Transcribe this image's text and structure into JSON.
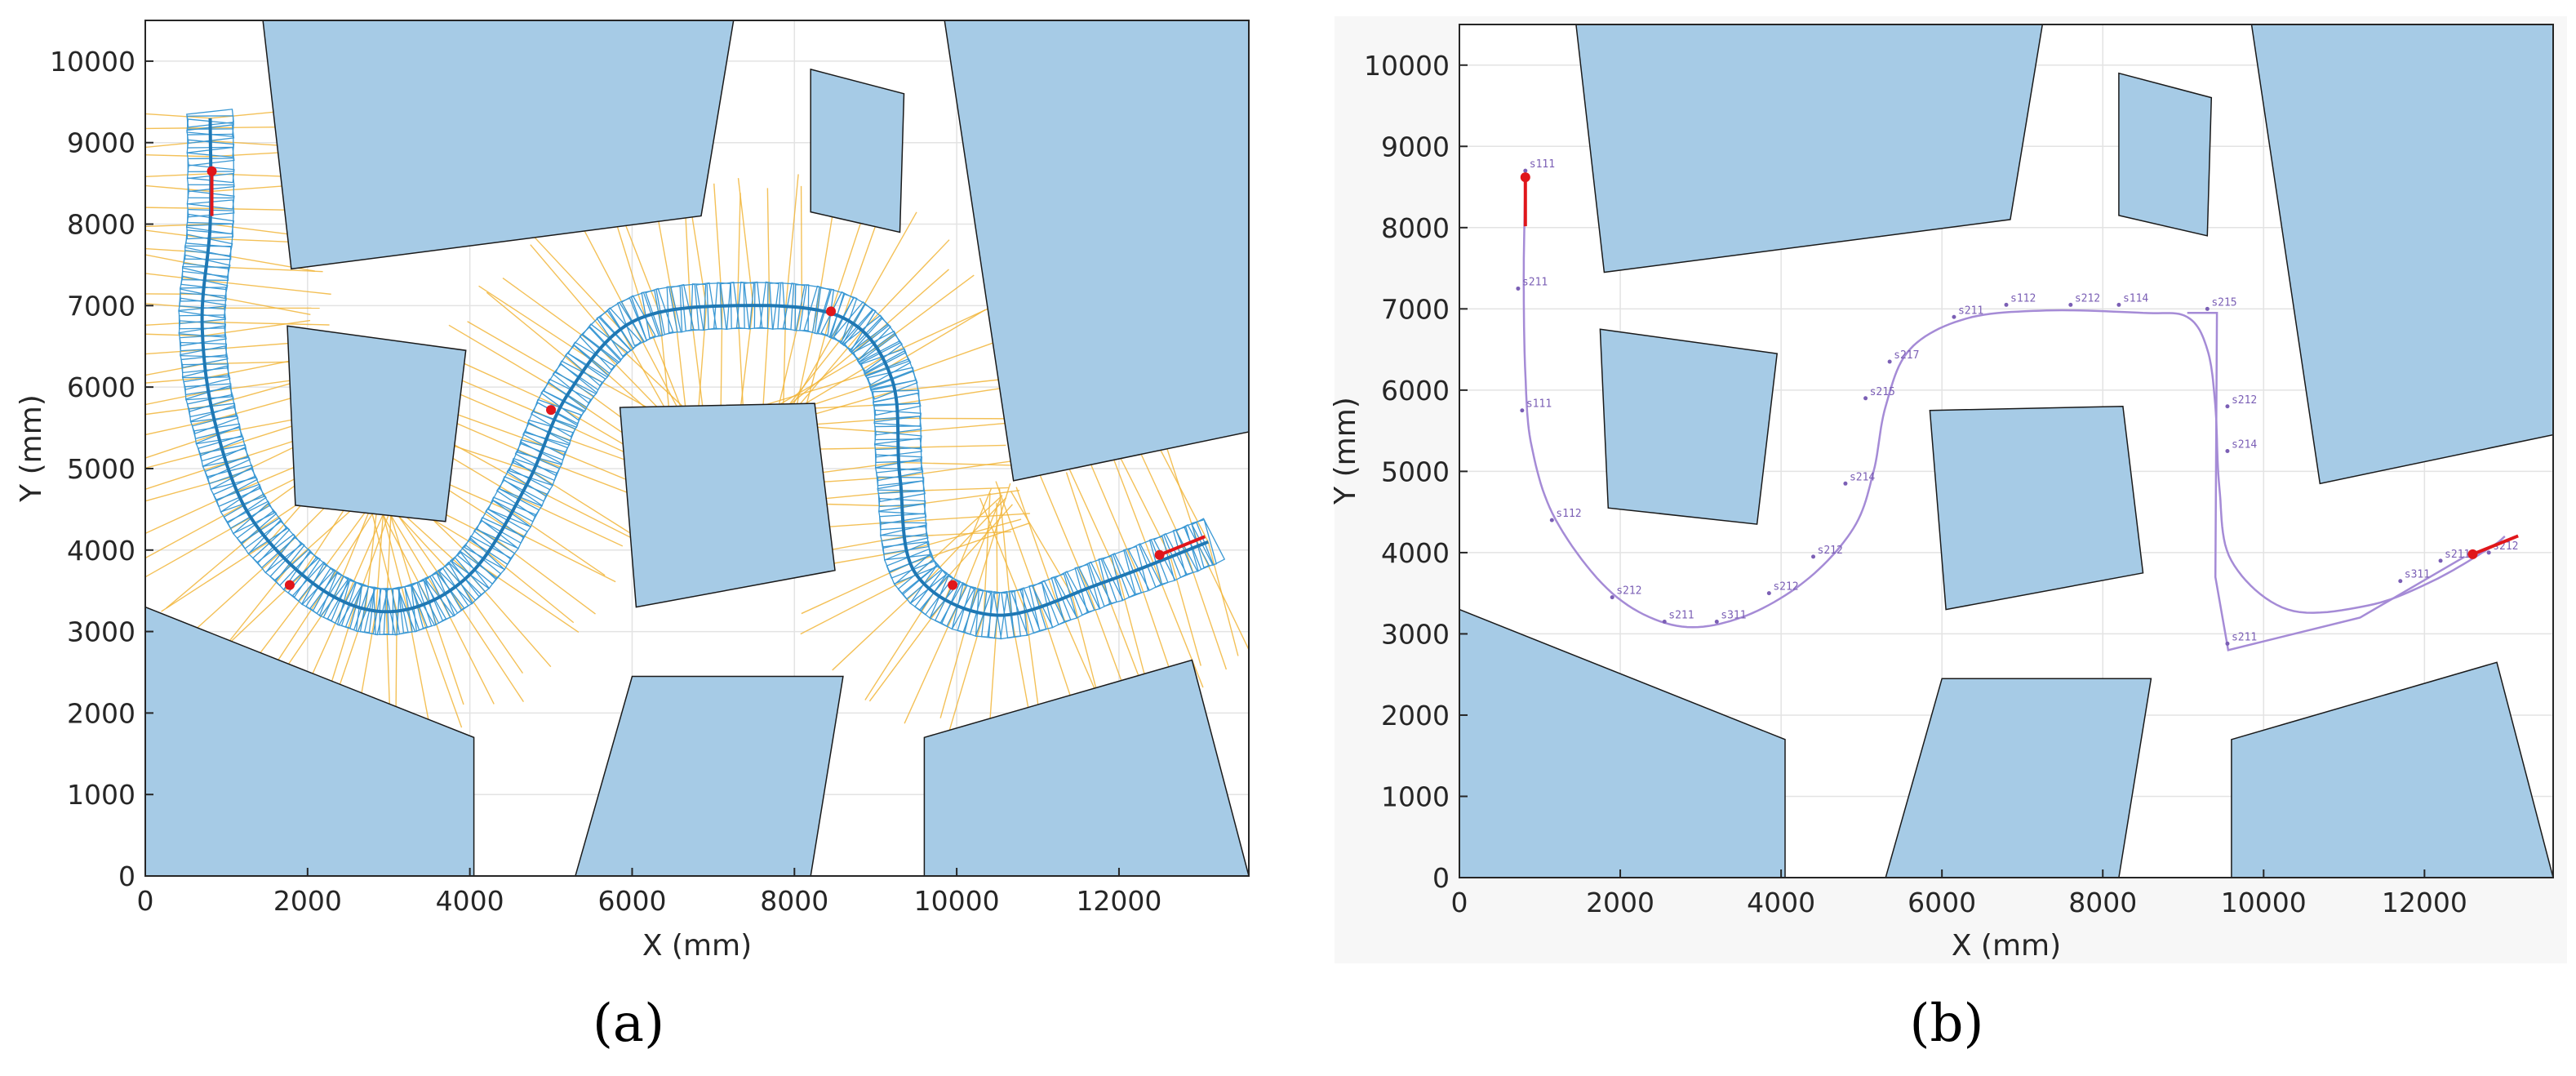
{
  "figure": {
    "panel_labels": [
      "(a)",
      "(b)"
    ]
  },
  "colors": {
    "obstacle_fill": "#a6cbe6",
    "obstacle_edge": "#1a1a1a",
    "grid": "#e3e3e3",
    "path_blue": "#1f78b4",
    "footprint_blue": "#3a98d4",
    "ray_orange": "#f2b63a",
    "marker_red": "#e0161b",
    "path_purple": "#a58bd6",
    "waypoint_text": "#7b5fb5"
  },
  "chart_data": [
    {
      "type": "scatter",
      "panel": "(a)",
      "xlabel": "X (mm)",
      "ylabel": "Y (mm)",
      "xlim": [
        0,
        13600
      ],
      "ylim": [
        0,
        10500
      ],
      "xticks": [
        0,
        2000,
        4000,
        6000,
        8000,
        10000,
        12000
      ],
      "yticks": [
        0,
        1000,
        2000,
        3000,
        4000,
        5000,
        6000,
        7000,
        8000,
        9000,
        10000
      ],
      "grid": true,
      "obstacles": [
        [
          [
            1450,
            10500
          ],
          [
            7250,
            10500
          ],
          [
            6850,
            8100
          ],
          [
            1800,
            7450
          ]
        ],
        [
          [
            8200,
            9900
          ],
          [
            9350,
            9600
          ],
          [
            9300,
            7900
          ],
          [
            8200,
            8150
          ]
        ],
        [
          [
            9850,
            10500
          ],
          [
            13600,
            10500
          ],
          [
            13600,
            5450
          ],
          [
            10700,
            4850
          ]
        ],
        [
          [
            1750,
            6750
          ],
          [
            3950,
            6450
          ],
          [
            3700,
            4350
          ],
          [
            1850,
            4550
          ]
        ],
        [
          [
            5850,
            5750
          ],
          [
            8250,
            5800
          ],
          [
            8500,
            3750
          ],
          [
            6050,
            3300
          ]
        ],
        [
          [
            0,
            3300
          ],
          [
            4050,
            1700
          ],
          [
            4050,
            0
          ],
          [
            0,
            0
          ]
        ],
        [
          [
            5300,
            0
          ],
          [
            8200,
            0
          ],
          [
            8600,
            2450
          ],
          [
            6000,
            2450
          ]
        ],
        [
          [
            9600,
            1700
          ],
          [
            12900,
            2650
          ],
          [
            13600,
            0
          ],
          [
            9600,
            0
          ]
        ]
      ],
      "path": [
        [
          800,
          9300
        ],
        [
          800,
          8000
        ],
        [
          700,
          6800
        ],
        [
          850,
          5600
        ],
        [
          1300,
          4400
        ],
        [
          2200,
          3500
        ],
        [
          3100,
          3250
        ],
        [
          4000,
          3700
        ],
        [
          4700,
          4800
        ],
        [
          5200,
          5900
        ],
        [
          6000,
          6800
        ],
        [
          7300,
          7000
        ],
        [
          8600,
          6850
        ],
        [
          9200,
          6100
        ],
        [
          9300,
          4900
        ],
        [
          9500,
          3700
        ],
        [
          10500,
          3200
        ],
        [
          11800,
          3600
        ],
        [
          13100,
          4100
        ]
      ],
      "poses": [
        {
          "x": 820,
          "y": 8650,
          "heading_deg": -90
        },
        {
          "x": 1780,
          "y": 3570,
          "heading_deg": 0
        },
        {
          "x": 5000,
          "y": 5720,
          "heading_deg": 0
        },
        {
          "x": 8450,
          "y": 6930,
          "heading_deg": 0
        },
        {
          "x": 9950,
          "y": 3570,
          "heading_deg": 0
        },
        {
          "x": 12500,
          "y": 3940,
          "heading_deg": 22
        }
      ]
    },
    {
      "type": "line",
      "panel": "(b)",
      "xlabel": "X (mm)",
      "ylabel": "Y (mm)",
      "xlim": [
        0,
        13600
      ],
      "ylim": [
        0,
        10500
      ],
      "xticks": [
        0,
        2000,
        4000,
        6000,
        8000,
        10000,
        12000
      ],
      "yticks": [
        0,
        1000,
        2000,
        3000,
        4000,
        5000,
        6000,
        7000,
        8000,
        9000,
        10000
      ],
      "grid": true,
      "path": [
        [
          820,
          8620
        ],
        [
          800,
          7400
        ],
        [
          820,
          6200
        ],
        [
          900,
          5300
        ],
        [
          1200,
          4400
        ],
        [
          1900,
          3500
        ],
        [
          2700,
          3100
        ],
        [
          3500,
          3200
        ],
        [
          4300,
          3650
        ],
        [
          4900,
          4300
        ],
        [
          5150,
          5000
        ],
        [
          5300,
          5800
        ],
        [
          5600,
          6500
        ],
        [
          6300,
          6880
        ],
        [
          7300,
          6980
        ],
        [
          8500,
          6950
        ],
        [
          9050,
          6900
        ],
        [
          9300,
          6500
        ],
        [
          9400,
          5800
        ],
        [
          9450,
          4800
        ],
        [
          9600,
          3900
        ],
        [
          10300,
          3300
        ],
        [
          11300,
          3350
        ],
        [
          12100,
          3650
        ],
        [
          12800,
          4050
        ],
        [
          13000,
          4200
        ]
      ],
      "polyline_segments": [
        [
          [
            9050,
            6950
          ],
          [
            9420,
            6950
          ],
          [
            9400,
            3700
          ],
          [
            9560,
            2800
          ],
          [
            11200,
            3200
          ],
          [
            12500,
            3950
          ]
        ]
      ],
      "waypoints": [
        {
          "label": "s111",
          "x": 820,
          "y": 8700
        },
        {
          "label": "s211",
          "x": 730,
          "y": 7250
        },
        {
          "label": "s111",
          "x": 780,
          "y": 5750
        },
        {
          "label": "s112",
          "x": 1150,
          "y": 4400
        },
        {
          "label": "s212",
          "x": 1900,
          "y": 3450
        },
        {
          "label": "s211",
          "x": 2550,
          "y": 3150
        },
        {
          "label": "s311",
          "x": 3200,
          "y": 3150
        },
        {
          "label": "s212",
          "x": 3850,
          "y": 3500
        },
        {
          "label": "s212",
          "x": 4400,
          "y": 3950
        },
        {
          "label": "s214",
          "x": 4800,
          "y": 4850
        },
        {
          "label": "s215",
          "x": 5050,
          "y": 5900
        },
        {
          "label": "s217",
          "x": 5350,
          "y": 6350
        },
        {
          "label": "s211",
          "x": 6150,
          "y": 6900
        },
        {
          "label": "s112",
          "x": 6800,
          "y": 7050
        },
        {
          "label": "s212",
          "x": 7600,
          "y": 7050
        },
        {
          "label": "s114",
          "x": 8200,
          "y": 7050
        },
        {
          "label": "s215",
          "x": 9300,
          "y": 7000
        },
        {
          "label": "s212",
          "x": 9550,
          "y": 5800
        },
        {
          "label": "s214",
          "x": 9550,
          "y": 5250
        },
        {
          "label": "s211",
          "x": 9550,
          "y": 2880
        },
        {
          "label": "s311",
          "x": 11700,
          "y": 3650
        },
        {
          "label": "s211",
          "x": 12200,
          "y": 3900
        },
        {
          "label": "s212",
          "x": 12800,
          "y": 4000
        }
      ],
      "poses": [
        {
          "x": 820,
          "y": 8620,
          "heading_deg": -90
        },
        {
          "x": 12600,
          "y": 3980,
          "heading_deg": 22
        }
      ],
      "obstacles": [
        [
          [
            1450,
            10500
          ],
          [
            7250,
            10500
          ],
          [
            6850,
            8100
          ],
          [
            1800,
            7450
          ]
        ],
        [
          [
            8200,
            9900
          ],
          [
            9350,
            9600
          ],
          [
            9300,
            7900
          ],
          [
            8200,
            8150
          ]
        ],
        [
          [
            9850,
            10500
          ],
          [
            13600,
            10500
          ],
          [
            13600,
            5450
          ],
          [
            10700,
            4850
          ]
        ],
        [
          [
            1750,
            6750
          ],
          [
            3950,
            6450
          ],
          [
            3700,
            4350
          ],
          [
            1850,
            4550
          ]
        ],
        [
          [
            5850,
            5750
          ],
          [
            8250,
            5800
          ],
          [
            8500,
            3750
          ],
          [
            6050,
            3300
          ]
        ],
        [
          [
            0,
            3300
          ],
          [
            4050,
            1700
          ],
          [
            4050,
            0
          ],
          [
            0,
            0
          ]
        ],
        [
          [
            5300,
            0
          ],
          [
            8200,
            0
          ],
          [
            8600,
            2450
          ],
          [
            6000,
            2450
          ]
        ],
        [
          [
            9600,
            1700
          ],
          [
            12900,
            2650
          ],
          [
            13600,
            0
          ],
          [
            9600,
            0
          ]
        ]
      ]
    }
  ]
}
